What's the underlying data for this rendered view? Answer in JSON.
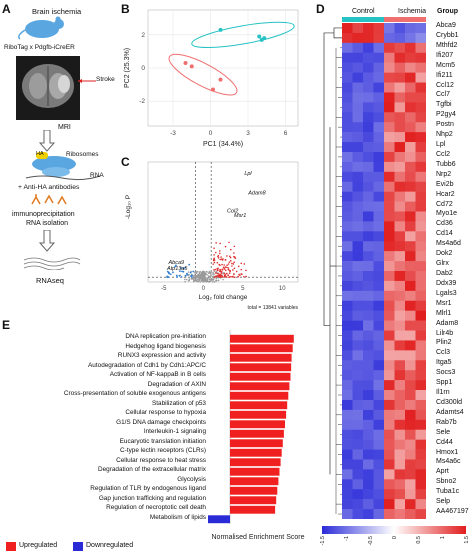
{
  "panels": [
    "A",
    "B",
    "C",
    "D",
    "E"
  ],
  "panelA": {
    "title": "Brain ischemia",
    "line": "RiboTag x Pdgfb-iCreER",
    "stroke": "Stroke",
    "mri": "MRI",
    "ha": "HA",
    "ribosomes": "Ribosomes",
    "rna": "RNA",
    "anti_ha": "+ Anti-HA antibodies",
    "immuno": "immunoprecipitation",
    "rna_iso": "RNA isolation",
    "rnaseq": "RNAseq"
  },
  "panelB": {
    "chart_data": {
      "type": "scatter",
      "xlabel": "PC1 (34.4%)",
      "ylabel": "PC2 (25.3%)",
      "xticks": [
        -3,
        0,
        3,
        6
      ],
      "yticks": [
        -2,
        0,
        2
      ],
      "xlim": [
        -5,
        7
      ],
      "ylim": [
        -3.5,
        3.5
      ],
      "grid": true,
      "series": [
        {
          "color": "#27c2c4",
          "points": [
            [
              0.8,
              2.3
            ],
            [
              3.9,
              1.9
            ],
            [
              4.3,
              1.8
            ],
            [
              4.1,
              1.7
            ]
          ]
        },
        {
          "color": "#ef6f6f",
          "points": [
            [
              -2.0,
              0.3
            ],
            [
              0.8,
              -0.7
            ],
            [
              0.2,
              -1.3
            ],
            [
              -1.5,
              0.1
            ]
          ]
        }
      ]
    }
  },
  "panelC": {
    "chart_data": {
      "type": "scatter",
      "xlabel": "Log₂ fold change",
      "ylabel": "-Log₁₀ P",
      "xticks": [
        -5,
        0,
        5,
        10
      ],
      "xlim": [
        -7,
        12
      ],
      "ylim": [
        0,
        10
      ],
      "total": "total = 13841 variables",
      "labels": [
        {
          "text": "Lpl",
          "x": 5.2,
          "y": 8.9
        },
        {
          "text": "Adam8",
          "x": 5.7,
          "y": 7.3
        },
        {
          "text": "Col2",
          "x": 3.0,
          "y": 5.8
        },
        {
          "text": "Msr1",
          "x": 3.9,
          "y": 5.4
        },
        {
          "text": "Abca9",
          "x": -4.4,
          "y": 1.5
        },
        {
          "text": "Atp13a5",
          "x": -4.6,
          "y": 1.0
        }
      ]
    }
  },
  "panelD": {
    "header_control": "Control",
    "header_ischemia": "Ischemia",
    "header_group": "Group",
    "genes": [
      "Abca9",
      "Crybb1",
      "Mthfd2",
      "Ifi207",
      "Mcm5",
      "Ifi211",
      "Ccl12",
      "Ccl7",
      "Tgfbi",
      "P2gy4",
      "Postn",
      "Nhp2",
      "Lpl",
      "Ccl2",
      "Tubb6",
      "Nrp2",
      "Evi2b",
      "Hcar2",
      "Cd72",
      "Myo1e",
      "Cd36",
      "Cd14",
      "Ms4a6d",
      "Dok2",
      "Glrx",
      "Dab2",
      "Ddx39",
      "Lgals3",
      "Msr1",
      "Mlrl1",
      "Adam8",
      "Lilr4b",
      "Plin2",
      "Ccl3",
      "Itga5",
      "Socs3",
      "Spp1",
      "Il1rn",
      "Cd300ld",
      "Adamts4",
      "Rab7b",
      "Sele",
      "Cd44",
      "Hmox1",
      "Ms4a6c",
      "Aprt",
      "Sbno2",
      "Tuba1c",
      "Selp",
      "AA467197"
    ],
    "colorbar": {
      "ticks": [
        "-1.5",
        "-1",
        "-0.5",
        "0",
        "0.5",
        "1",
        "1.5"
      ],
      "low": "#2b2bd9",
      "mid": "#ffffff",
      "high": "#e11d1d"
    }
  },
  "panelE": {
    "chart_data": {
      "type": "bar",
      "xlabel": "Normalised Enrichment Score",
      "categories": [
        "DNA replication pre-initiation",
        "Hedgehog ligand biogenesis",
        "RUNX3 expression and activity",
        "Autodegradation of Cdh1 by Cdh1:APC/C",
        "Activation of NF-kappaB in B cells",
        "Degradation of AXIN",
        "Cross-presentation of soluble exogenous antigens",
        "Stabilization of p53",
        "Cellular response to hypoxia",
        "G1/S DNA damage checkpoints",
        "Interleukin-1 signaling",
        "Eucaryotic translation initiation",
        "C-type lectin receptors (CLRs)",
        "Cellular response to heat stress",
        "Degradation of the extracellular matrix",
        "Glycolysis",
        "Regulation of TLR by endogenous ligand",
        "Gap junction trafficking and regulation",
        "Regulation of necroptotic cell death",
        "Metabolism of lipids"
      ],
      "values": [
        2.9,
        2.85,
        2.8,
        2.78,
        2.75,
        2.7,
        2.65,
        2.6,
        2.55,
        2.5,
        2.45,
        2.4,
        2.35,
        2.3,
        2.25,
        2.2,
        2.15,
        2.1,
        2.05,
        -1.0
      ],
      "xlim": [
        -1.2,
        3.0
      ]
    },
    "legend_up": "Upregulated",
    "legend_down": "Downregulated",
    "up_color": "#f02020",
    "down_color": "#2a2ad6"
  }
}
